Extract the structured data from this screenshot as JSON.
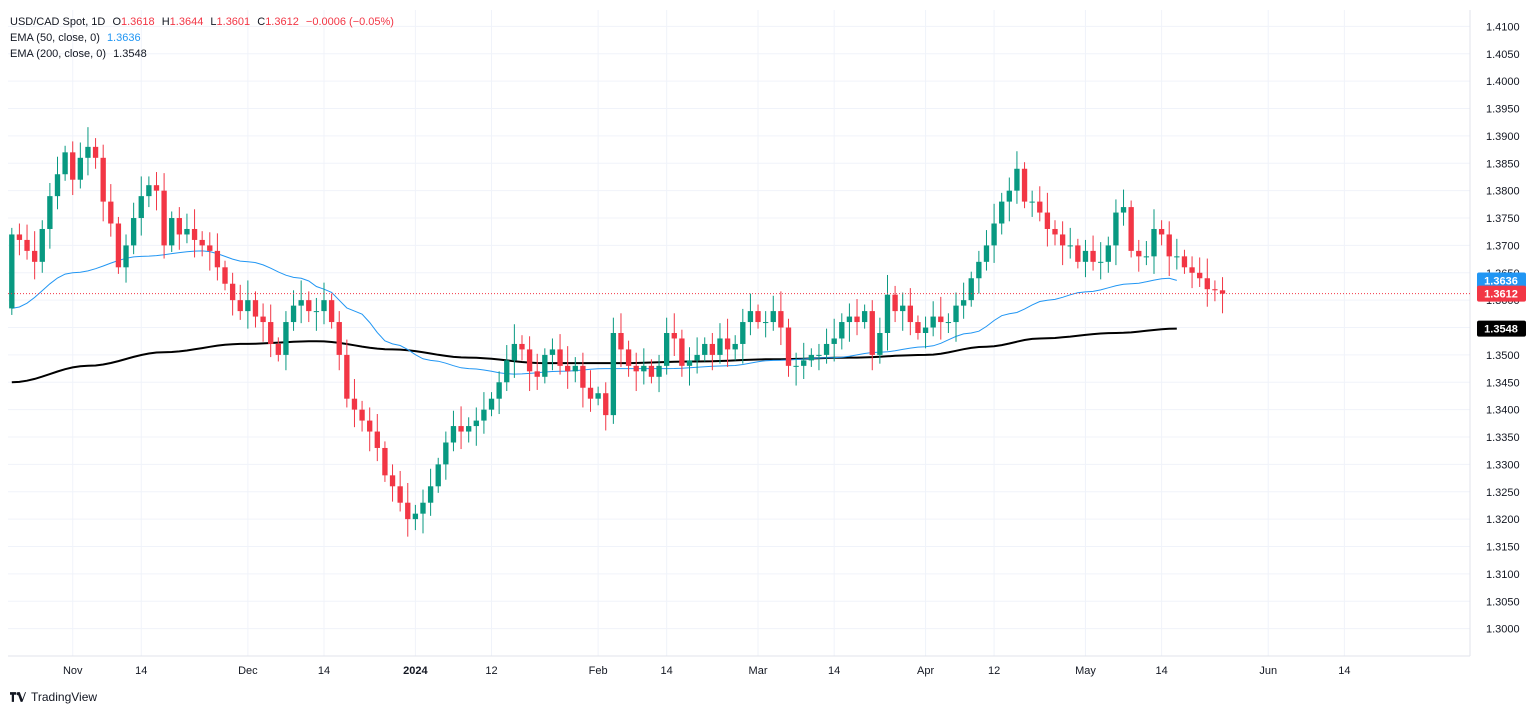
{
  "legend": {
    "symbol": "USD/CAD Spot, 1D",
    "open_label": "O",
    "open": "1.3618",
    "high_label": "H",
    "high": "1.3644",
    "low_label": "L",
    "low": "1.3601",
    "close_label": "C",
    "close": "1.3612",
    "change": "−0.0006 (−0.05%)",
    "ema50_label": "EMA (50, close, 0)",
    "ema50_value": "1.3636",
    "ema200_label": "EMA (200, close, 0)",
    "ema200_value": "1.3548"
  },
  "brand": {
    "name": "TradingView"
  },
  "colors": {
    "up": "#089981",
    "down": "#f23645",
    "ema50": "#2196f3",
    "ema200": "#000000",
    "grid": "#f0f3fa",
    "text": "#131722"
  },
  "chart_data": {
    "type": "candlestick",
    "ylim": [
      1.295,
      1.413
    ],
    "y_ticks": [
      "1.4100",
      "1.4050",
      "1.4000",
      "1.3950",
      "1.3900",
      "1.3850",
      "1.3800",
      "1.3750",
      "1.3700",
      "1.3650",
      "1.3600",
      "1.3550",
      "1.3500",
      "1.3450",
      "1.3400",
      "1.3350",
      "1.3300",
      "1.3250",
      "1.3200",
      "1.3150",
      "1.3100",
      "1.3050",
      "1.3000"
    ],
    "x_ticks": [
      {
        "label": "Nov",
        "i": 8
      },
      {
        "label": "14",
        "i": 17
      },
      {
        "label": "Dec",
        "i": 31
      },
      {
        "label": "14",
        "i": 41
      },
      {
        "label": "2024",
        "i": 53
      },
      {
        "label": "12",
        "i": 63
      },
      {
        "label": "Feb",
        "i": 77
      },
      {
        "label": "14",
        "i": 86
      },
      {
        "label": "Mar",
        "i": 98
      },
      {
        "label": "14",
        "i": 108
      },
      {
        "label": "Apr",
        "i": 120
      },
      {
        "label": "12",
        "i": 129
      },
      {
        "label": "May",
        "i": 141
      },
      {
        "label": "14",
        "i": 151
      },
      {
        "label": "Jun",
        "i": 165
      },
      {
        "label": "14",
        "i": 175
      }
    ],
    "slots": 192,
    "price_labels": [
      {
        "text": "1.3636",
        "value": 1.3636,
        "color": "#2196f3"
      },
      {
        "text": "1.3612",
        "value": 1.3612,
        "color": "#f23645"
      },
      {
        "text": "1.3548",
        "value": 1.3548,
        "color": "#000000"
      }
    ],
    "last_price": 1.3612,
    "closes": [
      1.372,
      1.371,
      1.369,
      1.367,
      1.373,
      1.379,
      1.383,
      1.387,
      1.382,
      1.386,
      1.388,
      1.386,
      1.378,
      1.374,
      1.366,
      1.37,
      1.375,
      1.379,
      1.381,
      1.38,
      1.37,
      1.375,
      1.372,
      1.373,
      1.371,
      1.37,
      1.369,
      1.366,
      1.363,
      1.36,
      1.358,
      1.36,
      1.357,
      1.356,
      1.352,
      1.35,
      1.356,
      1.359,
      1.36,
      1.358,
      1.358,
      1.36,
      1.356,
      1.35,
      1.342,
      1.34,
      1.338,
      1.336,
      1.333,
      1.328,
      1.326,
      1.323,
      1.32,
      1.321,
      1.323,
      1.326,
      1.33,
      1.334,
      1.337,
      1.336,
      1.337,
      1.338,
      1.34,
      1.342,
      1.345,
      1.349,
      1.352,
      1.351,
      1.347,
      1.346,
      1.35,
      1.351,
      1.348,
      1.347,
      1.348,
      1.344,
      1.342,
      1.343,
      1.339,
      1.354,
      1.351,
      1.348,
      1.347,
      1.348,
      1.346,
      1.348,
      1.354,
      1.353,
      1.348,
      1.349,
      1.35,
      1.352,
      1.35,
      1.353,
      1.351,
      1.352,
      1.356,
      1.358,
      1.356,
      1.356,
      1.358,
      1.355,
      1.348,
      1.348,
      1.349,
      1.35,
      1.35,
      1.352,
      1.353,
      1.356,
      1.357,
      1.356,
      1.358,
      1.35,
      1.354,
      1.361,
      1.358,
      1.359,
      1.356,
      1.354,
      1.355,
      1.357,
      1.356,
      1.356,
      1.359,
      1.36,
      1.364,
      1.367,
      1.37,
      1.374,
      1.378,
      1.38,
      1.384,
      1.378,
      1.378,
      1.376,
      1.373,
      1.372,
      1.37,
      1.37,
      1.367,
      1.369,
      1.367,
      1.367,
      1.37,
      1.376,
      1.377,
      1.369,
      1.368,
      1.368,
      1.373,
      1.372,
      1.368,
      1.368,
      1.366,
      1.365,
      1.364,
      1.362,
      1.3618,
      1.3612
    ],
    "ema50": {
      "start": 1.3585,
      "points": [
        [
          0,
          1.3585
        ],
        [
          8,
          1.365
        ],
        [
          17,
          1.368
        ],
        [
          25,
          1.369
        ],
        [
          31,
          1.367
        ],
        [
          38,
          1.364
        ],
        [
          41,
          1.362
        ],
        [
          45,
          1.358
        ],
        [
          50,
          1.352
        ],
        [
          55,
          1.349
        ],
        [
          60,
          1.3475
        ],
        [
          66,
          1.3465
        ],
        [
          72,
          1.347
        ],
        [
          78,
          1.3475
        ],
        [
          86,
          1.3475
        ],
        [
          94,
          1.348
        ],
        [
          100,
          1.349
        ],
        [
          108,
          1.3495
        ],
        [
          114,
          1.3505
        ],
        [
          120,
          1.3515
        ],
        [
          126,
          1.354
        ],
        [
          131,
          1.3575
        ],
        [
          136,
          1.36
        ],
        [
          141,
          1.3615
        ],
        [
          147,
          1.363
        ],
        [
          152,
          1.364
        ],
        [
          153,
          1.3636
        ]
      ]
    },
    "ema200": {
      "points": [
        [
          0,
          1.345
        ],
        [
          10,
          1.348
        ],
        [
          20,
          1.3505
        ],
        [
          30,
          1.352
        ],
        [
          40,
          1.3525
        ],
        [
          50,
          1.351
        ],
        [
          60,
          1.3495
        ],
        [
          70,
          1.3485
        ],
        [
          80,
          1.3485
        ],
        [
          90,
          1.3488
        ],
        [
          100,
          1.3492
        ],
        [
          110,
          1.3495
        ],
        [
          120,
          1.35
        ],
        [
          128,
          1.3515
        ],
        [
          135,
          1.353
        ],
        [
          145,
          1.354
        ],
        [
          153,
          1.3548
        ]
      ]
    }
  }
}
